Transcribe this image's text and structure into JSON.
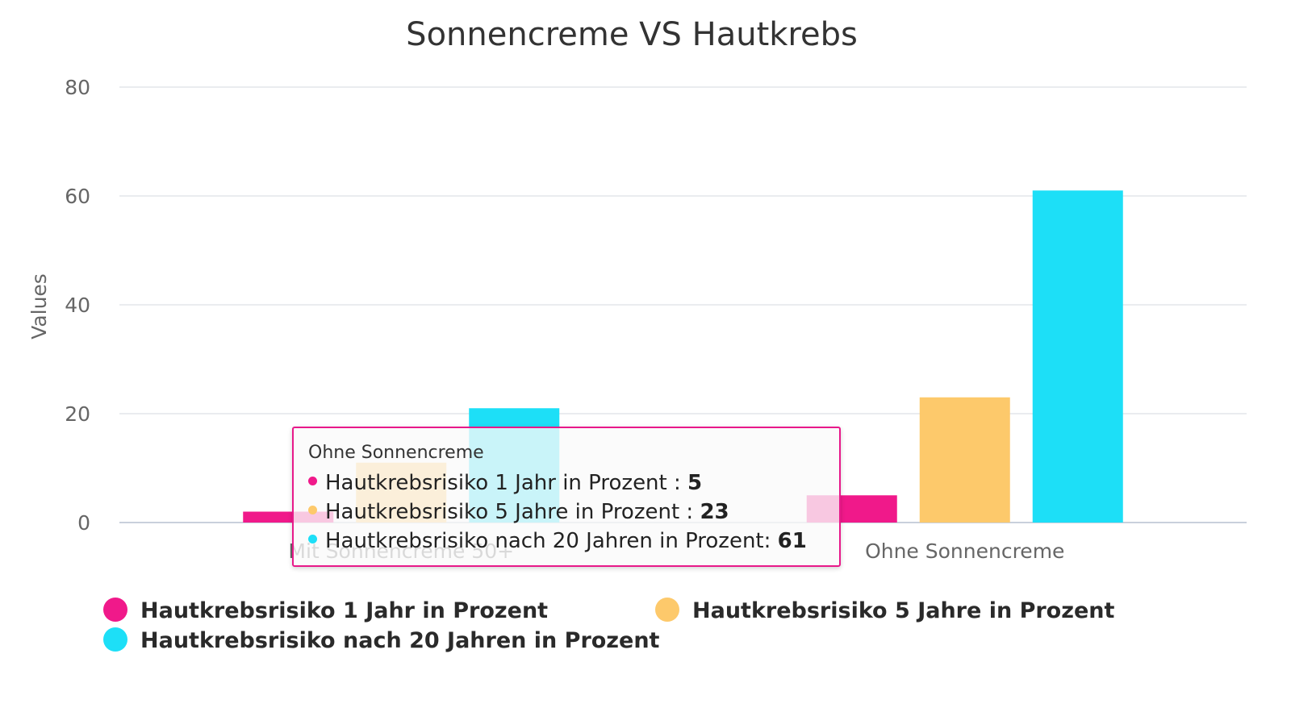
{
  "chart_data": {
    "type": "bar",
    "title": "Sonnencreme VS Hautkrebs",
    "ylabel": "Values",
    "xlabel": "",
    "ylim": [
      0,
      80
    ],
    "yticks": [
      0,
      20,
      40,
      60,
      80
    ],
    "grid": true,
    "legend_position": "bottom",
    "categories": [
      "Mit Sonnencreme 50+",
      "Ohne Sonnencreme"
    ],
    "series": [
      {
        "name": "Hautkrebsrisiko 1 Jahr in Prozent",
        "color": "#f0198a",
        "values": [
          2,
          5
        ]
      },
      {
        "name": "Hautkrebsrisiko 5 Jahre in Prozent",
        "color": "#fdc96b",
        "values": [
          11,
          23
        ]
      },
      {
        "name": "Hautkrebsrisiko nach 20 Jahren in Prozent",
        "color": "#1ddff7",
        "values": [
          21,
          61
        ]
      }
    ]
  },
  "tooltip": {
    "category": "Ohne Sonnencreme",
    "rows": [
      {
        "label": "Hautkrebsrisiko 1 Jahr in Prozent : ",
        "value": "5",
        "color": "#f0198a"
      },
      {
        "label": "Hautkrebsrisiko 5 Jahre in Prozent : ",
        "value": "23",
        "color": "#fdc96b"
      },
      {
        "label": "Hautkrebsrisiko nach 20 Jahren in Prozent: ",
        "value": "61",
        "color": "#1ddff7"
      }
    ]
  }
}
